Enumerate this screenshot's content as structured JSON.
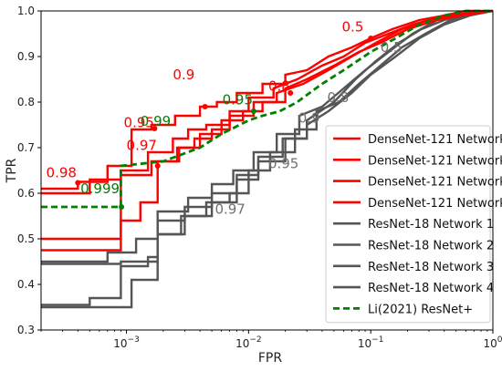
{
  "chart_data": {
    "type": "line",
    "xlabel": "FPR",
    "ylabel": "TPR",
    "xscale": "log",
    "xlim": [
      0.0002,
      1
    ],
    "ylim": [
      0.3,
      1.0
    ],
    "x_ticks": [
      {
        "value": 0.001,
        "label": "10",
        "exp": "−3"
      },
      {
        "value": 0.01,
        "label": "10",
        "exp": "−2"
      },
      {
        "value": 0.1,
        "label": "10",
        "exp": "−1"
      },
      {
        "value": 1,
        "label": "10",
        "exp": "0"
      }
    ],
    "y_ticks": [
      {
        "value": 0.3,
        "label": "0.3"
      },
      {
        "value": 0.4,
        "label": "0.4"
      },
      {
        "value": 0.5,
        "label": "0.5"
      },
      {
        "value": 0.6,
        "label": "0.6"
      },
      {
        "value": 0.7,
        "label": "0.7"
      },
      {
        "value": 0.8,
        "label": "0.8"
      },
      {
        "value": 0.9,
        "label": "0.9"
      },
      {
        "value": 1.0,
        "label": "1.0"
      }
    ],
    "grid": false,
    "legend_position": "bottom-right",
    "series": [
      {
        "name": "DenseNet-121 Network 1",
        "color": "#ff0000",
        "dash": false,
        "points": [
          [
            0.0002,
            0.61
          ],
          [
            0.0004,
            0.61
          ],
          [
            0.0004,
            0.625
          ],
          [
            0.0007,
            0.625
          ],
          [
            0.0007,
            0.66
          ],
          [
            0.0011,
            0.66
          ],
          [
            0.0011,
            0.74
          ],
          [
            0.0016,
            0.74
          ],
          [
            0.0016,
            0.75
          ],
          [
            0.0025,
            0.75
          ],
          [
            0.0025,
            0.77
          ],
          [
            0.004,
            0.77
          ],
          [
            0.004,
            0.79
          ],
          [
            0.0055,
            0.79
          ],
          [
            0.0055,
            0.8
          ],
          [
            0.008,
            0.8
          ],
          [
            0.008,
            0.82
          ],
          [
            0.013,
            0.82
          ],
          [
            0.013,
            0.84
          ],
          [
            0.02,
            0.84
          ],
          [
            0.02,
            0.86
          ],
          [
            0.03,
            0.87
          ],
          [
            0.045,
            0.9
          ],
          [
            0.07,
            0.92
          ],
          [
            0.1,
            0.94
          ],
          [
            0.15,
            0.96
          ],
          [
            0.25,
            0.98
          ],
          [
            0.4,
            0.99
          ],
          [
            0.6,
            1.0
          ],
          [
            1,
            1.0
          ]
        ]
      },
      {
        "name": "DenseNet-121 Network 2",
        "color": "#ff0000",
        "dash": false,
        "points": [
          [
            0.0002,
            0.5
          ],
          [
            0.0009,
            0.5
          ],
          [
            0.0009,
            0.64
          ],
          [
            0.0016,
            0.64
          ],
          [
            0.0016,
            0.67
          ],
          [
            0.0026,
            0.67
          ],
          [
            0.0026,
            0.7
          ],
          [
            0.004,
            0.7
          ],
          [
            0.004,
            0.73
          ],
          [
            0.006,
            0.73
          ],
          [
            0.006,
            0.76
          ],
          [
            0.009,
            0.76
          ],
          [
            0.009,
            0.78
          ],
          [
            0.013,
            0.78
          ],
          [
            0.013,
            0.8
          ],
          [
            0.02,
            0.8
          ],
          [
            0.02,
            0.83
          ],
          [
            0.03,
            0.85
          ],
          [
            0.05,
            0.88
          ],
          [
            0.08,
            0.91
          ],
          [
            0.12,
            0.93
          ],
          [
            0.2,
            0.96
          ],
          [
            0.35,
            0.98
          ],
          [
            0.55,
            0.99
          ],
          [
            1,
            1.0
          ]
        ]
      },
      {
        "name": "DenseNet-121 Network 3",
        "color": "#ff0000",
        "dash": false,
        "points": [
          [
            0.0002,
            0.6
          ],
          [
            0.0005,
            0.6
          ],
          [
            0.0005,
            0.63
          ],
          [
            0.0009,
            0.63
          ],
          [
            0.0009,
            0.65
          ],
          [
            0.0015,
            0.65
          ],
          [
            0.0015,
            0.69
          ],
          [
            0.0024,
            0.69
          ],
          [
            0.0024,
            0.72
          ],
          [
            0.0032,
            0.72
          ],
          [
            0.0032,
            0.74
          ],
          [
            0.0045,
            0.74
          ],
          [
            0.0045,
            0.75
          ],
          [
            0.007,
            0.75
          ],
          [
            0.007,
            0.78
          ],
          [
            0.01,
            0.78
          ],
          [
            0.01,
            0.81
          ],
          [
            0.016,
            0.81
          ],
          [
            0.016,
            0.83
          ],
          [
            0.025,
            0.85
          ],
          [
            0.04,
            0.88
          ],
          [
            0.06,
            0.9
          ],
          [
            0.09,
            0.93
          ],
          [
            0.14,
            0.95
          ],
          [
            0.22,
            0.97
          ],
          [
            0.4,
            0.99
          ],
          [
            1,
            1.0
          ]
        ]
      },
      {
        "name": "DenseNet-121 Network 4",
        "color": "#ff0000",
        "dash": false,
        "points": [
          [
            0.0002,
            0.475
          ],
          [
            0.0009,
            0.475
          ],
          [
            0.0009,
            0.54
          ],
          [
            0.0013,
            0.54
          ],
          [
            0.0013,
            0.58
          ],
          [
            0.0018,
            0.58
          ],
          [
            0.0018,
            0.67
          ],
          [
            0.0027,
            0.67
          ],
          [
            0.0027,
            0.7
          ],
          [
            0.0036,
            0.7
          ],
          [
            0.0036,
            0.72
          ],
          [
            0.005,
            0.72
          ],
          [
            0.005,
            0.74
          ],
          [
            0.007,
            0.74
          ],
          [
            0.007,
            0.77
          ],
          [
            0.011,
            0.77
          ],
          [
            0.011,
            0.8
          ],
          [
            0.017,
            0.8
          ],
          [
            0.017,
            0.82
          ],
          [
            0.028,
            0.84
          ],
          [
            0.045,
            0.87
          ],
          [
            0.07,
            0.9
          ],
          [
            0.11,
            0.93
          ],
          [
            0.18,
            0.96
          ],
          [
            0.3,
            0.98
          ],
          [
            0.5,
            0.99
          ],
          [
            1,
            1.0
          ]
        ]
      },
      {
        "name": "ResNet-18 Network 1",
        "color": "#555555",
        "dash": false,
        "points": [
          [
            0.0002,
            0.355
          ],
          [
            0.0005,
            0.355
          ],
          [
            0.0005,
            0.37
          ],
          [
            0.0009,
            0.37
          ],
          [
            0.0009,
            0.44
          ],
          [
            0.0015,
            0.44
          ],
          [
            0.0015,
            0.46
          ],
          [
            0.0018,
            0.46
          ],
          [
            0.0018,
            0.51
          ],
          [
            0.0028,
            0.51
          ],
          [
            0.0028,
            0.55
          ],
          [
            0.0045,
            0.55
          ],
          [
            0.0045,
            0.58
          ],
          [
            0.007,
            0.58
          ],
          [
            0.007,
            0.6
          ],
          [
            0.01,
            0.6
          ],
          [
            0.01,
            0.65
          ],
          [
            0.015,
            0.65
          ],
          [
            0.015,
            0.69
          ],
          [
            0.024,
            0.69
          ],
          [
            0.024,
            0.74
          ],
          [
            0.036,
            0.74
          ],
          [
            0.036,
            0.78
          ],
          [
            0.055,
            0.8
          ],
          [
            0.08,
            0.84
          ],
          [
            0.12,
            0.88
          ],
          [
            0.18,
            0.92
          ],
          [
            0.28,
            0.95
          ],
          [
            0.45,
            0.98
          ],
          [
            0.7,
            0.995
          ],
          [
            1,
            1.0
          ]
        ]
      },
      {
        "name": "ResNet-18 Network 2",
        "color": "#555555",
        "dash": false,
        "points": [
          [
            0.0002,
            0.445
          ],
          [
            0.0009,
            0.445
          ],
          [
            0.0009,
            0.45
          ],
          [
            0.0018,
            0.45
          ],
          [
            0.0018,
            0.51
          ],
          [
            0.003,
            0.51
          ],
          [
            0.003,
            0.55
          ],
          [
            0.005,
            0.55
          ],
          [
            0.005,
            0.58
          ],
          [
            0.008,
            0.58
          ],
          [
            0.008,
            0.63
          ],
          [
            0.012,
            0.63
          ],
          [
            0.012,
            0.67
          ],
          [
            0.02,
            0.67
          ],
          [
            0.02,
            0.72
          ],
          [
            0.03,
            0.72
          ],
          [
            0.03,
            0.76
          ],
          [
            0.05,
            0.8
          ],
          [
            0.075,
            0.85
          ],
          [
            0.11,
            0.89
          ],
          [
            0.17,
            0.93
          ],
          [
            0.26,
            0.96
          ],
          [
            0.4,
            0.98
          ],
          [
            0.65,
            0.995
          ],
          [
            1,
            1.0
          ]
        ]
      },
      {
        "name": "ResNet-18 Network 3",
        "color": "#555555",
        "dash": false,
        "points": [
          [
            0.0002,
            0.45
          ],
          [
            0.0007,
            0.45
          ],
          [
            0.0007,
            0.47
          ],
          [
            0.0012,
            0.47
          ],
          [
            0.0012,
            0.5
          ],
          [
            0.0018,
            0.5
          ],
          [
            0.0018,
            0.56
          ],
          [
            0.0032,
            0.56
          ],
          [
            0.0032,
            0.59
          ],
          [
            0.005,
            0.59
          ],
          [
            0.005,
            0.62
          ],
          [
            0.0075,
            0.62
          ],
          [
            0.0075,
            0.65
          ],
          [
            0.011,
            0.65
          ],
          [
            0.011,
            0.69
          ],
          [
            0.017,
            0.69
          ],
          [
            0.017,
            0.73
          ],
          [
            0.026,
            0.73
          ],
          [
            0.026,
            0.77
          ],
          [
            0.04,
            0.79
          ],
          [
            0.06,
            0.83
          ],
          [
            0.09,
            0.87
          ],
          [
            0.14,
            0.91
          ],
          [
            0.22,
            0.95
          ],
          [
            0.35,
            0.98
          ],
          [
            0.6,
            0.995
          ],
          [
            1,
            1.0
          ]
        ]
      },
      {
        "name": "ResNet-18 Network 4",
        "color": "#555555",
        "dash": false,
        "points": [
          [
            0.0002,
            0.35
          ],
          [
            0.0011,
            0.35
          ],
          [
            0.0011,
            0.41
          ],
          [
            0.0018,
            0.41
          ],
          [
            0.0018,
            0.54
          ],
          [
            0.003,
            0.54
          ],
          [
            0.003,
            0.57
          ],
          [
            0.005,
            0.57
          ],
          [
            0.005,
            0.6
          ],
          [
            0.008,
            0.6
          ],
          [
            0.008,
            0.64
          ],
          [
            0.012,
            0.64
          ],
          [
            0.012,
            0.68
          ],
          [
            0.019,
            0.68
          ],
          [
            0.019,
            0.72
          ],
          [
            0.03,
            0.72
          ],
          [
            0.03,
            0.75
          ],
          [
            0.045,
            0.78
          ],
          [
            0.07,
            0.82
          ],
          [
            0.1,
            0.86
          ],
          [
            0.16,
            0.9
          ],
          [
            0.25,
            0.94
          ],
          [
            0.4,
            0.97
          ],
          [
            0.65,
            0.99
          ],
          [
            1,
            1.0
          ]
        ]
      },
      {
        "name": "Li(2021) ResNet+",
        "color": "#008000",
        "dash": true,
        "points": [
          [
            0.0002,
            0.57
          ],
          [
            0.0009,
            0.57
          ],
          [
            0.0009,
            0.66
          ],
          [
            0.002,
            0.67
          ],
          [
            0.004,
            0.7
          ],
          [
            0.006,
            0.73
          ],
          [
            0.01,
            0.76
          ],
          [
            0.013,
            0.77
          ],
          [
            0.018,
            0.78
          ],
          [
            0.025,
            0.8
          ],
          [
            0.04,
            0.84
          ],
          [
            0.06,
            0.87
          ],
          [
            0.1,
            0.91
          ],
          [
            0.16,
            0.94
          ],
          [
            0.25,
            0.97
          ],
          [
            0.4,
            0.99
          ],
          [
            0.6,
            1.0
          ],
          [
            1,
            1.0
          ]
        ]
      }
    ],
    "annotations": [
      {
        "text": "0.98",
        "x": 0.00022,
        "y": 0.635,
        "color": "#ff0000",
        "marker": [
          0.0004,
          0.623
        ]
      },
      {
        "text": "0.95",
        "x": 0.00095,
        "y": 0.745,
        "color": "#ff0000",
        "marker": [
          0.0017,
          0.742
        ]
      },
      {
        "text": "0.97",
        "x": 0.001,
        "y": 0.695,
        "color": "#ff0000",
        "marker": [
          0.0018,
          0.66
        ]
      },
      {
        "text": "0.9",
        "x": 0.0024,
        "y": 0.85,
        "color": "#ff0000",
        "marker": [
          0.0044,
          0.79
        ]
      },
      {
        "text": "0.8",
        "x": 0.0145,
        "y": 0.825,
        "color": "#ff0000",
        "marker": [
          0.022,
          0.82
        ]
      },
      {
        "text": "0.5",
        "x": 0.058,
        "y": 0.955,
        "color": "#ff0000",
        "marker": [
          0.1,
          0.94
        ]
      },
      {
        "text": "0.99",
        "x": 0.0013,
        "y": 0.748,
        "color": "#008000",
        "marker": null
      },
      {
        "text": "0.95",
        "x": 0.0061,
        "y": 0.795,
        "color": "#008000",
        "marker": [
          0.011,
          0.78
        ]
      },
      {
        "text": "0.999",
        "x": 0.00042,
        "y": 0.6,
        "color": "#008000",
        "marker": [
          0.00091,
          0.57
        ]
      },
      {
        "text": "0.5",
        "x": 0.12,
        "y": 0.91,
        "color": "#707070",
        "marker": null
      },
      {
        "text": "0.8",
        "x": 0.044,
        "y": 0.8,
        "color": "#707070",
        "marker": null
      },
      {
        "text": "0.9",
        "x": 0.0255,
        "y": 0.755,
        "color": "#707070",
        "marker": null
      },
      {
        "text": "0.95",
        "x": 0.0145,
        "y": 0.655,
        "color": "#707070",
        "marker": null
      },
      {
        "text": "0.97",
        "x": 0.0053,
        "y": 0.555,
        "color": "#707070",
        "marker": null
      }
    ]
  }
}
